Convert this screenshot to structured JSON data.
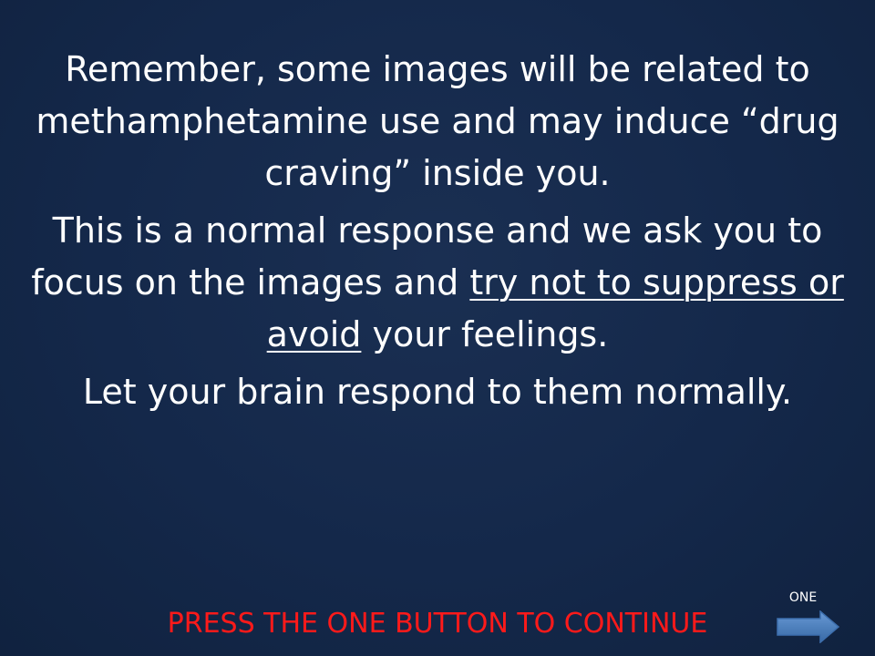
{
  "slide": {
    "paragraph1": "Remember, some images will be related to methamphetamine use and may induce “drug craving” inside you.",
    "paragraph2_before": "This is a normal response and we ask you to focus on the images and ",
    "paragraph2_underlined": "try not to suppress or avoid",
    "paragraph2_after": " your feelings.",
    "paragraph3": "Let your brain respond to them normally."
  },
  "footer": {
    "continue_text": "PRESS THE ONE BUTTON TO CONTINUE",
    "button_label": "ONE"
  },
  "colors": {
    "background": "#14284a",
    "text": "#ffffff",
    "continue_text": "#ff1a1a",
    "arrow": "#4f81bd"
  },
  "icons": {
    "next": "arrow-right-icon"
  }
}
